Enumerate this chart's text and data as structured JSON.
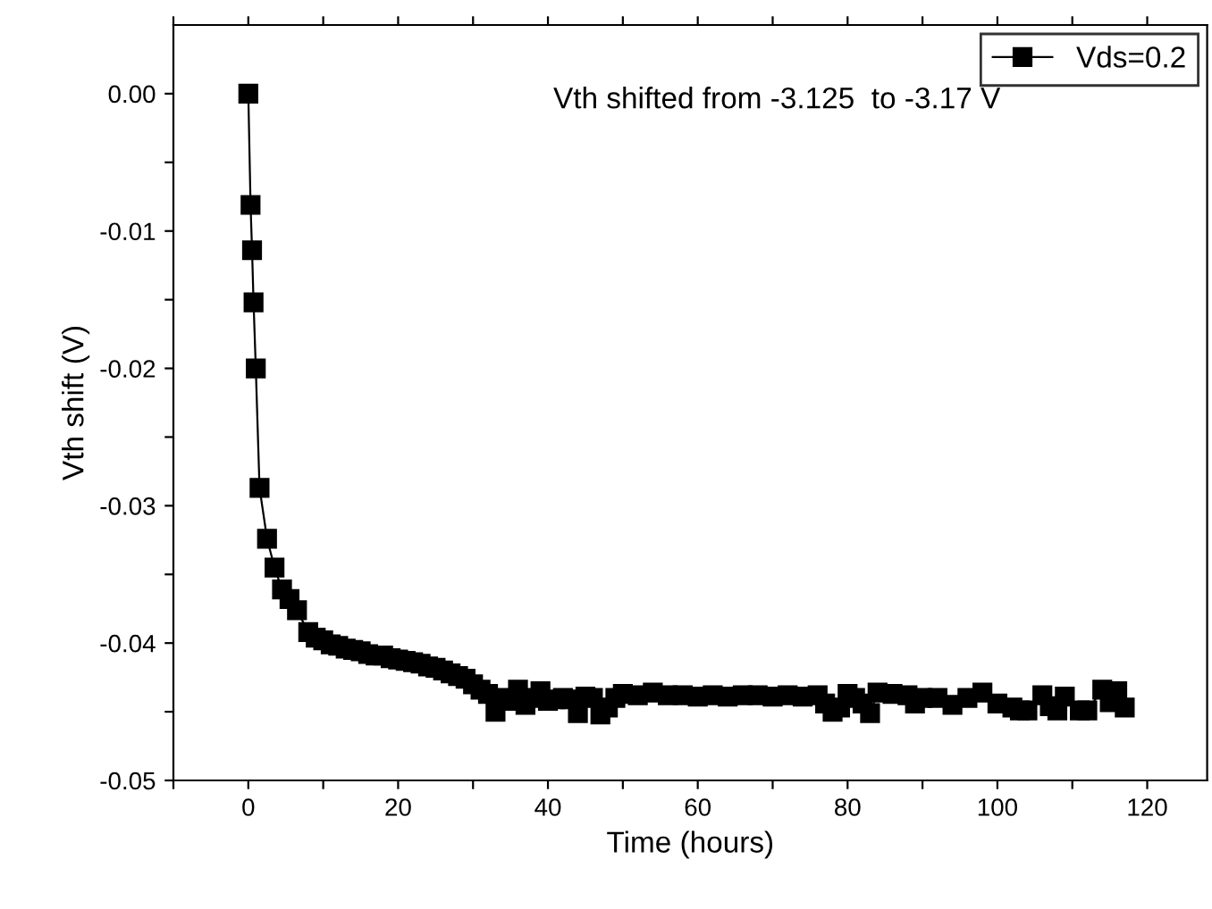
{
  "chart_data": {
    "type": "line",
    "xlabel": "Time (hours)",
    "ylabel": "Vth shift (V)",
    "annotations": [
      "Vth shifted from -3.125  to -3.17 V"
    ],
    "x": [
      0,
      0.3,
      0.5,
      0.7,
      1,
      1.5,
      2.5,
      3.5,
      4.5,
      5.5,
      6.5,
      8,
      9,
      10,
      11,
      12,
      13,
      14,
      15,
      16,
      17,
      18,
      19,
      20,
      21,
      22,
      23,
      24,
      25,
      26,
      27,
      28,
      29,
      30,
      31,
      32,
      33,
      34,
      35,
      36,
      37,
      38,
      39,
      40,
      41,
      42,
      43,
      44,
      45,
      46,
      47,
      48,
      49,
      50,
      52,
      54,
      56,
      58,
      60,
      62,
      64,
      66,
      68,
      70,
      72,
      74,
      76,
      77,
      78,
      79,
      80,
      81,
      82,
      83,
      84,
      86,
      88,
      89,
      90,
      92,
      94,
      96,
      98,
      100,
      102,
      103,
      104,
      106,
      107,
      108,
      109,
      111,
      112,
      114,
      115,
      116,
      117
    ],
    "series": [
      {
        "name": "Vds=0.2",
        "color": "#000000",
        "values": [
          0,
          -0.0081,
          -0.0114,
          -0.0152,
          -0.02,
          -0.0287,
          -0.0324,
          -0.0345,
          -0.0361,
          -0.0368,
          -0.0376,
          -0.0392,
          -0.0396,
          -0.0398,
          -0.0401,
          -0.0402,
          -0.0404,
          -0.0405,
          -0.0406,
          -0.0408,
          -0.0409,
          -0.0409,
          -0.0411,
          -0.0412,
          -0.0413,
          -0.0414,
          -0.0415,
          -0.0417,
          -0.0418,
          -0.042,
          -0.0422,
          -0.0424,
          -0.0426,
          -0.043,
          -0.0434,
          -0.0437,
          -0.045,
          -0.044,
          -0.0442,
          -0.0434,
          -0.0445,
          -0.044,
          -0.0435,
          -0.0442,
          -0.0441,
          -0.044,
          -0.0441,
          -0.0451,
          -0.0439,
          -0.044,
          -0.0452,
          -0.0447,
          -0.044,
          -0.0437,
          -0.0438,
          -0.0436,
          -0.0438,
          -0.0438,
          -0.0439,
          -0.0438,
          -0.0439,
          -0.0438,
          -0.0438,
          -0.0439,
          -0.0438,
          -0.0439,
          -0.0438,
          -0.0444,
          -0.045,
          -0.0447,
          -0.0437,
          -0.044,
          -0.0444,
          -0.0451,
          -0.0436,
          -0.0437,
          -0.0438,
          -0.0444,
          -0.044,
          -0.044,
          -0.0445,
          -0.044,
          -0.0436,
          -0.0444,
          -0.0447,
          -0.0449,
          -0.0449,
          -0.0438,
          -0.0446,
          -0.0449,
          -0.0439,
          -0.0449,
          -0.0449,
          -0.0434,
          -0.0443,
          -0.0435,
          -0.0447
        ]
      }
    ],
    "xlim": [
      -10,
      128
    ],
    "xticks": [
      0,
      20,
      40,
      60,
      80,
      100,
      120,
      {
        "value": -10,
        "label": null
      },
      {
        "value": 10,
        "label": null
      },
      {
        "value": 30,
        "label": null
      },
      {
        "value": 50,
        "label": null
      },
      {
        "value": 70,
        "label": null
      },
      {
        "value": 90,
        "label": null
      },
      {
        "value": 110,
        "label": null
      }
    ],
    "ylim": [
      -0.05,
      0.005
    ],
    "yticks": [
      {
        "value": 0,
        "label": "0.00"
      },
      {
        "value": -0.01,
        "label": "-0.01"
      },
      {
        "value": -0.02,
        "label": "-0.02"
      },
      {
        "value": -0.03,
        "label": "-0.03"
      },
      {
        "value": -0.04,
        "label": "-0.04"
      },
      {
        "value": -0.05,
        "label": "-0.05"
      },
      {
        "value": -0.005,
        "label": null
      },
      {
        "value": -0.015,
        "label": null
      },
      {
        "value": -0.025,
        "label": null
      },
      {
        "value": -0.035,
        "label": null
      },
      {
        "value": -0.045,
        "label": null
      }
    ],
    "marker": "square",
    "line_style": "solid",
    "legend": "top right",
    "grid": false
  }
}
